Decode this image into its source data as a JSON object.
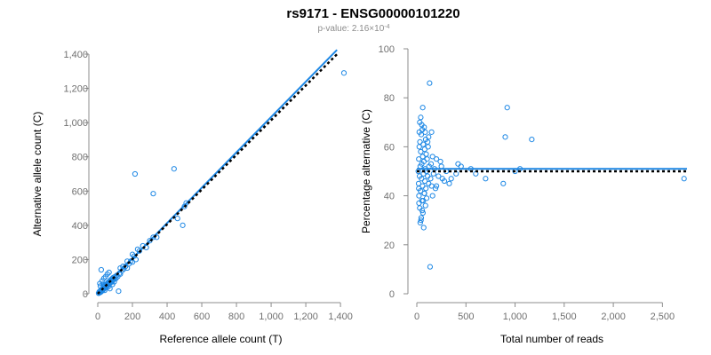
{
  "figure": {
    "title": "rs9171 - ENSG00000101220",
    "subtitle_prefix": "p-value: 2.16×10",
    "subtitle_exponent": "-4"
  },
  "colors": {
    "accent": "#1e88e5",
    "reference_line": "#000000",
    "axis": "#8c8c8c"
  },
  "chart_data": [
    {
      "type": "scatter",
      "xlabel": "Reference allele count (T)",
      "ylabel": "Alternative allele count (C)",
      "xlim": [
        0,
        1420
      ],
      "ylim": [
        0,
        1400
      ],
      "x_ticks": [
        0,
        200,
        400,
        600,
        800,
        1000,
        1200,
        1400
      ],
      "x_tick_labels": [
        "0",
        "200",
        "400",
        "600",
        "800",
        "1,000",
        "1,200",
        "1,400"
      ],
      "y_ticks": [
        0,
        200,
        400,
        600,
        800,
        1000,
        1200,
        1400
      ],
      "y_tick_labels": [
        "0",
        "200",
        "400",
        "600",
        "800",
        "1,000",
        "1,200",
        "1,400"
      ],
      "grid": false,
      "points": [
        [
          5,
          3
        ],
        [
          8,
          10
        ],
        [
          10,
          6
        ],
        [
          12,
          15
        ],
        [
          15,
          8
        ],
        [
          18,
          20
        ],
        [
          20,
          12
        ],
        [
          22,
          25
        ],
        [
          25,
          18
        ],
        [
          28,
          30
        ],
        [
          30,
          22
        ],
        [
          33,
          28
        ],
        [
          35,
          40
        ],
        [
          38,
          30
        ],
        [
          40,
          35
        ],
        [
          42,
          50
        ],
        [
          45,
          38
        ],
        [
          48,
          45
        ],
        [
          50,
          55
        ],
        [
          52,
          42
        ],
        [
          55,
          60
        ],
        [
          58,
          50
        ],
        [
          60,
          65
        ],
        [
          62,
          55
        ],
        [
          65,
          70
        ],
        [
          68,
          60
        ],
        [
          70,
          75
        ],
        [
          72,
          62
        ],
        [
          75,
          80
        ],
        [
          78,
          70
        ],
        [
          80,
          85
        ],
        [
          82,
          72
        ],
        [
          85,
          90
        ],
        [
          88,
          80
        ],
        [
          90,
          95
        ],
        [
          95,
          85
        ],
        [
          100,
          100
        ],
        [
          105,
          90
        ],
        [
          110,
          108
        ],
        [
          115,
          100
        ],
        [
          120,
          15
        ],
        [
          125,
          120
        ],
        [
          130,
          115
        ],
        [
          140,
          135
        ],
        [
          150,
          145
        ],
        [
          160,
          160
        ],
        [
          170,
          150
        ],
        [
          180,
          175
        ],
        [
          190,
          190
        ],
        [
          200,
          185
        ],
        [
          210,
          220
        ],
        [
          220,
          200
        ],
        [
          240,
          250
        ],
        [
          260,
          280
        ],
        [
          280,
          270
        ],
        [
          300,
          310
        ],
        [
          320,
          330
        ],
        [
          340,
          330
        ],
        [
          20,
          140
        ],
        [
          215,
          700
        ],
        [
          320,
          585
        ],
        [
          440,
          730
        ],
        [
          490,
          400
        ],
        [
          460,
          440
        ],
        [
          500,
          510
        ],
        [
          510,
          530
        ],
        [
          1420,
          1290
        ],
        [
          12,
          60
        ],
        [
          25,
          75
        ],
        [
          35,
          90
        ],
        [
          45,
          100
        ],
        [
          55,
          115
        ],
        [
          65,
          125
        ],
        [
          15,
          45
        ],
        [
          30,
          55
        ],
        [
          40,
          20
        ],
        [
          60,
          40
        ],
        [
          70,
          30
        ],
        [
          85,
          55
        ],
        [
          95,
          70
        ],
        [
          130,
          150
        ],
        [
          145,
          160
        ],
        [
          170,
          190
        ],
        [
          200,
          230
        ],
        [
          230,
          260
        ]
      ],
      "fit_line": [
        [
          0,
          0
        ],
        [
          1380,
          1425
        ]
      ],
      "reference_line": [
        [
          0,
          0
        ],
        [
          1390,
          1410
        ]
      ]
    },
    {
      "type": "scatter",
      "xlabel": "Total number of reads",
      "ylabel": "Percentage alternative (C)",
      "xlim": [
        0,
        2750
      ],
      "ylim": [
        0,
        100
      ],
      "x_ticks": [
        0,
        500,
        1000,
        1500,
        2000,
        2500
      ],
      "x_tick_labels": [
        "0",
        "500",
        "1,000",
        "1,500",
        "2,000",
        "2,500"
      ],
      "y_ticks": [
        0,
        20,
        40,
        60,
        80,
        100
      ],
      "y_tick_labels": [
        "0",
        "20",
        "40",
        "60",
        "80",
        "100"
      ],
      "grid": false,
      "points": [
        [
          15,
          50
        ],
        [
          18,
          45
        ],
        [
          20,
          55
        ],
        [
          22,
          40
        ],
        [
          25,
          60
        ],
        [
          28,
          48
        ],
        [
          30,
          35
        ],
        [
          32,
          62
        ],
        [
          35,
          52
        ],
        [
          38,
          42
        ],
        [
          40,
          58
        ],
        [
          42,
          30
        ],
        [
          45,
          65
        ],
        [
          48,
          47
        ],
        [
          50,
          53
        ],
        [
          52,
          38
        ],
        [
          55,
          67
        ],
        [
          58,
          44
        ],
        [
          60,
          56
        ],
        [
          62,
          33
        ],
        [
          65,
          61
        ],
        [
          68,
          49
        ],
        [
          70,
          27
        ],
        [
          72,
          54
        ],
        [
          75,
          68
        ],
        [
          78,
          41
        ],
        [
          80,
          59
        ],
        [
          82,
          46
        ],
        [
          85,
          51
        ],
        [
          88,
          36
        ],
        [
          90,
          63
        ],
        [
          92,
          43
        ],
        [
          95,
          57
        ],
        [
          98,
          50
        ],
        [
          100,
          39
        ],
        [
          105,
          55
        ],
        [
          110,
          48
        ],
        [
          115,
          60
        ],
        [
          120,
          45
        ],
        [
          125,
          52
        ],
        [
          130,
          86
        ],
        [
          135,
          11
        ],
        [
          140,
          47
        ],
        [
          145,
          53
        ],
        [
          150,
          44
        ],
        [
          160,
          56
        ],
        [
          170,
          49
        ],
        [
          180,
          51
        ],
        [
          190,
          43
        ],
        [
          200,
          55
        ],
        [
          220,
          48
        ],
        [
          250,
          52
        ],
        [
          280,
          46
        ],
        [
          300,
          50
        ],
        [
          350,
          47
        ],
        [
          400,
          49
        ],
        [
          450,
          52
        ],
        [
          550,
          51
        ],
        [
          600,
          49
        ],
        [
          700,
          47
        ],
        [
          900,
          64
        ],
        [
          920,
          76
        ],
        [
          880,
          45
        ],
        [
          1000,
          50
        ],
        [
          1050,
          51
        ],
        [
          1170,
          63
        ],
        [
          2720,
          47
        ],
        [
          60,
          76
        ],
        [
          40,
          72
        ],
        [
          30,
          70
        ],
        [
          25,
          66
        ],
        [
          50,
          69
        ],
        [
          85,
          66
        ],
        [
          110,
          62
        ],
        [
          150,
          66
        ],
        [
          240,
          54
        ],
        [
          330,
          45
        ],
        [
          420,
          53
        ],
        [
          20,
          43
        ],
        [
          22,
          37
        ],
        [
          35,
          29
        ],
        [
          45,
          31
        ],
        [
          55,
          34
        ],
        [
          65,
          38
        ],
        [
          75,
          41
        ],
        [
          120,
          64
        ],
        [
          160,
          40
        ],
        [
          200,
          44
        ],
        [
          260,
          47
        ]
      ],
      "fit_line": [
        [
          0,
          51
        ],
        [
          2750,
          51
        ]
      ],
      "reference_line": [
        [
          0,
          50
        ],
        [
          2750,
          50
        ]
      ]
    }
  ]
}
